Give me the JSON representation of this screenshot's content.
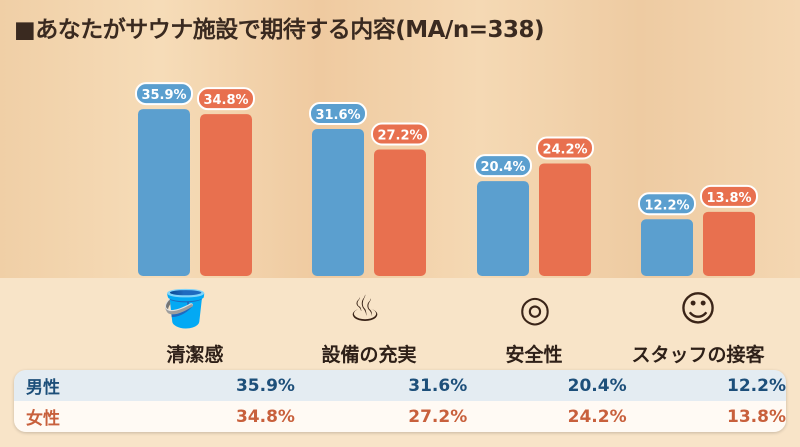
{
  "title": "■あなたがサウナ施設で期待する内容(MA/n=338)",
  "chart_data": {
    "type": "bar",
    "title": "■あなたがサウナ施設で期待する内容(MA/n=338)",
    "categories": [
      "清潔感",
      "設備の充実",
      "安全性",
      "スタッフの接客"
    ],
    "series": [
      {
        "name": "男性",
        "values": [
          35.9,
          31.6,
          20.4,
          12.2
        ],
        "labels": [
          "35.9%",
          "31.6%",
          "20.4%",
          "12.2%"
        ],
        "color": "#5b9fcf"
      },
      {
        "name": "女性",
        "values": [
          34.8,
          27.2,
          24.2,
          13.8
        ],
        "labels": [
          "34.8%",
          "27.2%",
          "24.2%",
          "13.8%"
        ],
        "color": "#e8704f"
      }
    ],
    "ylim": [
      0,
      40
    ],
    "grid": false,
    "icons": [
      "bucket-sparkle-icon",
      "sauna-heater-icon",
      "lifebuoy-icon",
      "headset-staff-icon"
    ]
  },
  "table": {
    "rows": [
      {
        "label": "男性",
        "values": [
          "35.9%",
          "31.6%",
          "20.4%",
          "12.2%"
        ]
      },
      {
        "label": "女性",
        "values": [
          "34.8%",
          "27.2%",
          "24.2%",
          "13.8%"
        ]
      }
    ]
  }
}
